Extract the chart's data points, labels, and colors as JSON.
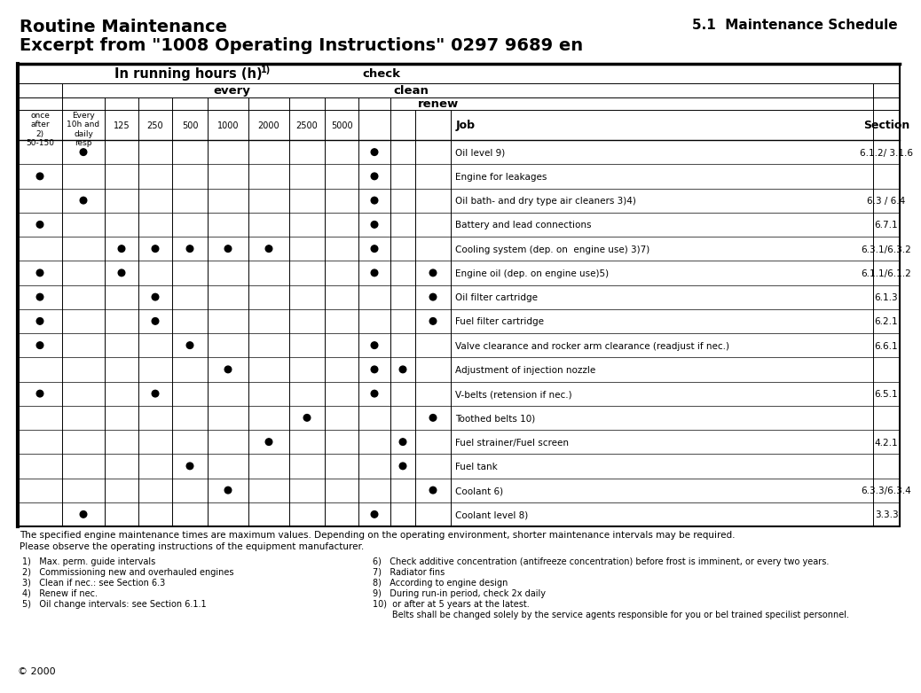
{
  "title_left": "Routine Maintenance",
  "title_right": "5.1  Maintenance Schedule",
  "subtitle": "Excerpt from \"1008 Operating Instructions\" 0297 9689 en",
  "rows": [
    {
      "once": false,
      "daily": true,
      "c125": false,
      "c250": false,
      "c500": false,
      "c1000": false,
      "c2000": false,
      "c2500": false,
      "c5000": false,
      "check": true,
      "clean": false,
      "renew": false,
      "job": "Oil level 9)",
      "section": "6.1.2/ 3.1.6"
    },
    {
      "once": true,
      "daily": false,
      "c125": false,
      "c250": false,
      "c500": false,
      "c1000": false,
      "c2000": false,
      "c2500": false,
      "c5000": false,
      "check": true,
      "clean": false,
      "renew": false,
      "job": "Engine for leakages",
      "section": ""
    },
    {
      "once": false,
      "daily": true,
      "c125": false,
      "c250": false,
      "c500": false,
      "c1000": false,
      "c2000": false,
      "c2500": false,
      "c5000": false,
      "check": true,
      "clean": false,
      "renew": false,
      "job": "Oil bath- and dry type air cleaners 3)4)",
      "section": "6.3 / 6.4"
    },
    {
      "once": true,
      "daily": false,
      "c125": false,
      "c250": false,
      "c500": false,
      "c1000": false,
      "c2000": false,
      "c2500": false,
      "c5000": false,
      "check": true,
      "clean": false,
      "renew": false,
      "job": "Battery and lead connections",
      "section": "6.7.1"
    },
    {
      "once": false,
      "daily": false,
      "c125": true,
      "c250": true,
      "c500": true,
      "c1000": true,
      "c2000": true,
      "c2500": false,
      "c5000": false,
      "check": true,
      "clean": false,
      "renew": false,
      "job": "Cooling system (dep. on  engine use) 3)7)",
      "section": "6.3.1/6.3.2"
    },
    {
      "once": true,
      "daily": false,
      "c125": true,
      "c250": false,
      "c500": false,
      "c1000": false,
      "c2000": false,
      "c2500": false,
      "c5000": false,
      "check": true,
      "clean": false,
      "renew": true,
      "job": "Engine oil (dep. on engine use)5)",
      "section": "6.1.1/6.1.2"
    },
    {
      "once": true,
      "daily": false,
      "c125": false,
      "c250": true,
      "c500": false,
      "c1000": false,
      "c2000": false,
      "c2500": false,
      "c5000": false,
      "check": false,
      "clean": false,
      "renew": true,
      "job": "Oil filter cartridge",
      "section": "6.1.3"
    },
    {
      "once": true,
      "daily": false,
      "c125": false,
      "c250": true,
      "c500": false,
      "c1000": false,
      "c2000": false,
      "c2500": false,
      "c5000": false,
      "check": false,
      "clean": false,
      "renew": true,
      "job": "Fuel filter cartridge",
      "section": "6.2.1"
    },
    {
      "once": true,
      "daily": false,
      "c125": false,
      "c250": false,
      "c500": true,
      "c1000": false,
      "c2000": false,
      "c2500": false,
      "c5000": false,
      "check": true,
      "clean": false,
      "renew": false,
      "job": "Valve clearance and rocker arm clearance (readjust if nec.)",
      "section": "6.6.1"
    },
    {
      "once": false,
      "daily": false,
      "c125": false,
      "c250": false,
      "c500": false,
      "c1000": true,
      "c2000": false,
      "c2500": false,
      "c5000": false,
      "check": true,
      "clean": true,
      "renew": false,
      "job": "Adjustment of injection nozzle",
      "section": ""
    },
    {
      "once": true,
      "daily": false,
      "c125": false,
      "c250": true,
      "c500": false,
      "c1000": false,
      "c2000": false,
      "c2500": false,
      "c5000": false,
      "check": true,
      "clean": false,
      "renew": false,
      "job": "V-belts (retension if nec.)",
      "section": "6.5.1"
    },
    {
      "once": false,
      "daily": false,
      "c125": false,
      "c250": false,
      "c500": false,
      "c1000": false,
      "c2000": false,
      "c2500": true,
      "c5000": false,
      "check": false,
      "clean": false,
      "renew": true,
      "job": "Toothed belts 10)",
      "section": ""
    },
    {
      "once": false,
      "daily": false,
      "c125": false,
      "c250": false,
      "c500": false,
      "c1000": false,
      "c2000": true,
      "c2500": false,
      "c5000": false,
      "check": false,
      "clean": true,
      "renew": false,
      "job": "Fuel strainer/Fuel screen",
      "section": "4.2.1"
    },
    {
      "once": false,
      "daily": false,
      "c125": false,
      "c250": false,
      "c500": true,
      "c1000": false,
      "c2000": false,
      "c2500": false,
      "c5000": false,
      "check": false,
      "clean": true,
      "renew": false,
      "job": "Fuel tank",
      "section": ""
    },
    {
      "once": false,
      "daily": false,
      "c125": false,
      "c250": false,
      "c500": false,
      "c1000": true,
      "c2000": false,
      "c2500": false,
      "c5000": false,
      "check": false,
      "clean": false,
      "renew": true,
      "job": "Coolant 6)",
      "section": "6.3.3/6.3.4"
    },
    {
      "once": false,
      "daily": true,
      "c125": false,
      "c250": false,
      "c500": false,
      "c1000": false,
      "c2000": false,
      "c2500": false,
      "c5000": false,
      "check": true,
      "clean": false,
      "renew": false,
      "job": "Coolant level 8)",
      "section": "3.3.3"
    }
  ],
  "footnote_warning1": "The specified engine maintenance times are maximum values. Depending on the operating environment, shorter maintenance intervals may be required.",
  "footnote_warning2": "Please observe the operating instructions of the equipment manufacturer.",
  "footnotes_left": [
    "1)   Max. perm. guide intervals",
    "2)   Commissioning new and overhauled engines",
    "3)   Clean if nec.: see Section 6.3",
    "4)   Renew if nec.",
    "5)   Oil change intervals: see Section 6.1.1"
  ],
  "footnotes_right": [
    "6)   Check additive concentration (antifreeze concentration) before frost is imminent, or every two years.",
    "7)   Radiator fins",
    "8)   According to engine design",
    "9)   During run-in period, check 2x daily",
    "10)  or after at 5 years at the latest.",
    "       Belts shall be changed solely by the service agents responsible for you or bel trained specilist personnel."
  ],
  "copyright": "© 2000"
}
